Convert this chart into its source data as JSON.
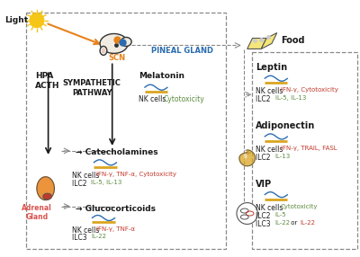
{
  "bg_color": "#ffffff",
  "colors": {
    "orange": "#E8821A",
    "blue": "#2B6CB0",
    "green": "#5B8C3E",
    "red": "#C0392B",
    "dark": "#1a1a1a",
    "adrenal_red": "#D9534F",
    "gray": "#888888",
    "sun_yellow": "#F5C518",
    "wave_blue": "#2B6CB0",
    "wave_gold": "#DAA520"
  },
  "texts": {
    "light": "Light",
    "scn": "SCN",
    "pineal": "PINEAL GLAND",
    "hpa": "HPA\nACTH",
    "sympathetic": "SYMPATHETIC\nPATHWAY",
    "adrenal": "Adrenal\nGland",
    "melatonin": "Melatonin",
    "catecholamines": "Catecholamines",
    "glucocorticoids": "Glucocorticoids",
    "food": "Food",
    "leptin": "Leptin",
    "adiponectin": "Adiponectin",
    "vip": "VIP"
  }
}
